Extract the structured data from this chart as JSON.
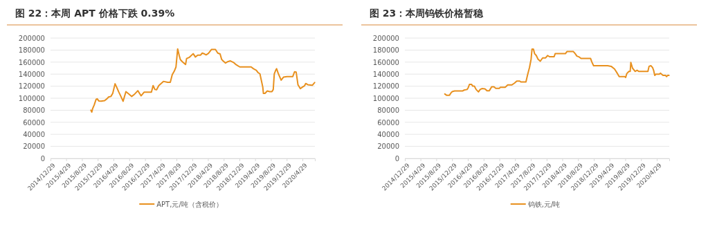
{
  "chart_data": [
    {
      "type": "line",
      "title": "图 22：本周 APT 价格下跌 0.39%",
      "x": [
        "2015-11-06",
        "2015-11-13",
        "2015-11-20",
        "2015-12-02",
        "2015-12-16",
        "2015-12-25",
        "2016-01-06",
        "2016-01-24",
        "2016-02-20",
        "2016-03-09",
        "2016-03-22",
        "2016-04-09",
        "2016-04-23",
        "2016-05-11",
        "2016-05-23",
        "2016-06-07",
        "2016-06-25",
        "2016-07-12",
        "2016-08-03",
        "2016-08-26",
        "2016-09-17",
        "2016-10-10",
        "2016-11-03",
        "2016-11-28",
        "2016-12-21",
        "2017-01-16",
        "2017-02-16",
        "2017-03-01",
        "2017-03-15",
        "2017-03-28",
        "2017-04-14",
        "2017-05-20",
        "2017-06-21",
        "2017-07-12",
        "2017-07-27",
        "2017-08-12",
        "2017-08-25",
        "2017-09-07",
        "2017-09-19",
        "2017-09-28",
        "2017-10-16",
        "2017-11-07",
        "2017-11-15",
        "2017-12-07",
        "2018-01-05",
        "2018-01-22",
        "2018-02-09",
        "2018-03-02",
        "2018-03-16",
        "2018-04-03",
        "2018-04-15",
        "2018-05-03",
        "2018-05-26",
        "2018-06-26",
        "2018-07-14",
        "2018-08-01",
        "2018-08-13",
        "2018-08-24",
        "2018-09-11",
        "2018-10-02",
        "2018-10-20",
        "2018-11-16",
        "2018-12-04",
        "2018-12-31",
        "2019-03-29",
        "2019-04-16",
        "2019-05-08",
        "2019-05-22",
        "2019-06-05",
        "2019-06-18",
        "2019-06-27",
        "2019-07-02",
        "2019-07-14",
        "2019-08-01",
        "2019-08-19",
        "2019-09-06",
        "2019-09-16",
        "2019-09-24",
        "2019-10-05",
        "2019-10-12",
        "2019-10-24",
        "2019-11-16",
        "2019-12-04",
        "2019-12-31",
        "2020-02-14",
        "2020-02-28",
        "2020-03-11",
        "2020-03-25",
        "2020-04-12",
        "2020-04-29",
        "2020-05-14",
        "2020-05-24",
        "2020-06-09",
        "2020-07-14",
        "2020-08-01"
      ],
      "series": [
        {
          "name": "APT,元/吨（含税价）",
          "color": "#e8901e",
          "values": [
            80000,
            77000,
            83000,
            89000,
            98000,
            99000,
            95500,
            95000,
            96000,
            99000,
            102000,
            103000,
            108000,
            124000,
            118500,
            111000,
            103000,
            95000,
            111000,
            107000,
            103000,
            107000,
            112500,
            104000,
            110000,
            110000,
            110000,
            121000,
            114500,
            114000,
            121000,
            128000,
            126500,
            126500,
            139000,
            145000,
            152000,
            182000,
            171000,
            164000,
            160000,
            156000,
            166000,
            168000,
            174000,
            168500,
            171500,
            171500,
            175000,
            173500,
            172000,
            174500,
            181000,
            181000,
            175000,
            173500,
            164500,
            162000,
            158500,
            161000,
            162000,
            159000,
            155500,
            152000,
            152000,
            149000,
            146500,
            142500,
            140500,
            127500,
            118500,
            108000,
            108000,
            112000,
            111000,
            111000,
            114500,
            140500,
            146500,
            149000,
            141500,
            130000,
            135000,
            136000,
            136000,
            144000,
            143500,
            122500,
            116000,
            118500,
            120500,
            124500,
            122500,
            121500,
            126000
          ]
        }
      ],
      "xlim": [
        "2014-12-29",
        "2020-08-03"
      ],
      "xticks": [
        {
          "value": "2014-12-29",
          "label": "2014/12/29"
        },
        {
          "value": "2015-04-29",
          "label": "2015/4/29"
        },
        {
          "value": "2015-08-29",
          "label": "2015/8/29"
        },
        {
          "value": "2015-12-29",
          "label": "2015/12/29"
        },
        {
          "value": "2016-04-29",
          "label": "2016/4/29"
        },
        {
          "value": "2016-08-29",
          "label": "2016/8/29"
        },
        {
          "value": "2016-12-29",
          "label": "2016/12/29"
        },
        {
          "value": "2017-04-29",
          "label": "2017/4/29"
        },
        {
          "value": "2017-08-29",
          "label": "2017/8/29"
        },
        {
          "value": "2017-12-29",
          "label": "2017/12/29"
        },
        {
          "value": "2018-04-29",
          "label": "2018/4/29"
        },
        {
          "value": "2018-08-29",
          "label": "2018/8/29"
        },
        {
          "value": "2018-12-29",
          "label": "2018/12/29"
        },
        {
          "value": "2019-04-29",
          "label": "2019/4/29"
        },
        {
          "value": "2019-08-29",
          "label": "2019/8/29"
        },
        {
          "value": "2019-12-29",
          "label": "2019/12/29"
        },
        {
          "value": "2020-04-29",
          "label": "2020/4/29"
        }
      ],
      "ylim": [
        0,
        200000
      ],
      "yticks": [
        0,
        20000,
        40000,
        60000,
        80000,
        100000,
        120000,
        140000,
        160000,
        180000,
        200000
      ],
      "grid": "y",
      "legend": "bottom",
      "marker": "none",
      "line_style": "solid"
    },
    {
      "type": "line",
      "title": "图 23：本周钨铁价格暂稳",
      "x": [
        "2015-11-03",
        "2015-11-16",
        "2015-12-09",
        "2015-12-21",
        "2015-12-30",
        "2016-01-17",
        "2016-03-18",
        "2016-03-31",
        "2016-04-23",
        "2016-05-02",
        "2016-05-11",
        "2016-05-28",
        "2016-06-06",
        "2016-06-18",
        "2016-07-02",
        "2016-07-20",
        "2016-08-02",
        "2016-08-16",
        "2016-09-08",
        "2016-09-24",
        "2016-10-12",
        "2016-10-30",
        "2016-11-17",
        "2016-12-01",
        "2016-12-28",
        "2017-01-05",
        "2017-02-10",
        "2017-02-19",
        "2017-03-02",
        "2017-04-03",
        "2017-04-24",
        "2017-05-12",
        "2017-06-04",
        "2017-06-13",
        "2017-07-22",
        "2017-08-04",
        "2017-08-19",
        "2017-08-31",
        "2017-09-07",
        "2017-09-18",
        "2017-09-27",
        "2017-10-10",
        "2017-10-23",
        "2017-11-10",
        "2017-11-28",
        "2017-12-21",
        "2018-01-06",
        "2018-01-20",
        "2018-02-25",
        "2018-03-05",
        "2018-05-23",
        "2018-06-04",
        "2018-07-24",
        "2018-08-07",
        "2018-08-20",
        "2018-09-07",
        "2018-09-21",
        "2018-12-04",
        "2018-12-13",
        "2018-12-27",
        "2019-04-15",
        "2019-05-12",
        "2019-06-07",
        "2019-06-28",
        "2019-07-13",
        "2019-08-26",
        "2019-09-01",
        "2019-09-10",
        "2019-09-26",
        "2019-10-06",
        "2019-10-11",
        "2019-10-24",
        "2019-11-14",
        "2019-11-28",
        "2019-12-13",
        "2020-02-20",
        "2020-02-29",
        "2020-03-14",
        "2020-03-27",
        "2020-04-04",
        "2020-04-13",
        "2020-04-22",
        "2020-05-18",
        "2020-05-27",
        "2020-06-05",
        "2020-06-16",
        "2020-07-05",
        "2020-07-14",
        "2020-07-22",
        "2020-08-01"
      ],
      "series": [
        {
          "name": "钨铁,元/吨",
          "color": "#e8901e",
          "values": [
            107000,
            105000,
            105000,
            109000,
            111000,
            112000,
            112000,
            113500,
            114500,
            117500,
            123000,
            123000,
            120000,
            120000,
            114500,
            110500,
            114500,
            116000,
            115500,
            112500,
            112500,
            119000,
            119000,
            116500,
            116500,
            118000,
            118000,
            119500,
            122000,
            122000,
            125000,
            128500,
            128500,
            127000,
            127000,
            139000,
            151500,
            165000,
            181500,
            181500,
            174000,
            171000,
            165000,
            161500,
            167000,
            167000,
            171000,
            169000,
            169000,
            174000,
            174000,
            177500,
            177500,
            174000,
            170000,
            168500,
            166000,
            166000,
            160500,
            154000,
            154000,
            153000,
            148500,
            141500,
            136000,
            136000,
            134500,
            141000,
            144500,
            144500,
            159500,
            150000,
            144500,
            146500,
            144500,
            144500,
            153000,
            154000,
            151000,
            146500,
            138000,
            140000,
            140000,
            141500,
            140000,
            138000,
            138000,
            136000,
            138000,
            138000
          ]
        }
      ],
      "xlim": [
        "2014-12-29",
        "2020-08-03"
      ],
      "xticks": [
        {
          "value": "2014-12-29",
          "label": "2014/12/29"
        },
        {
          "value": "2015-04-29",
          "label": "2015/4/29"
        },
        {
          "value": "2015-08-29",
          "label": "2015/8/29"
        },
        {
          "value": "2015-12-29",
          "label": "2015/12/29"
        },
        {
          "value": "2016-04-29",
          "label": "2016/4/29"
        },
        {
          "value": "2016-08-29",
          "label": "2016/8/29"
        },
        {
          "value": "2016-12-29",
          "label": "2016/12/29"
        },
        {
          "value": "2017-04-29",
          "label": "2017/4/29"
        },
        {
          "value": "2017-08-29",
          "label": "2017/8/29"
        },
        {
          "value": "2017-12-29",
          "label": "2017/12/29"
        },
        {
          "value": "2018-04-29",
          "label": "2018/4/29"
        },
        {
          "value": "2018-08-29",
          "label": "2018/8/29"
        },
        {
          "value": "2018-12-29",
          "label": "2018/12/29"
        },
        {
          "value": "2019-04-29",
          "label": "2019/4/29"
        },
        {
          "value": "2019-08-29",
          "label": "2019/8/29"
        },
        {
          "value": "2019-12-29",
          "label": "2019/12/29"
        },
        {
          "value": "2020-04-29",
          "label": "2020/4/29"
        }
      ],
      "ylim": [
        0,
        200000
      ],
      "yticks": [
        0,
        20000,
        40000,
        60000,
        80000,
        100000,
        120000,
        140000,
        160000,
        180000,
        200000
      ],
      "grid": "y",
      "legend": "bottom",
      "marker": "none",
      "line_style": "solid"
    }
  ]
}
